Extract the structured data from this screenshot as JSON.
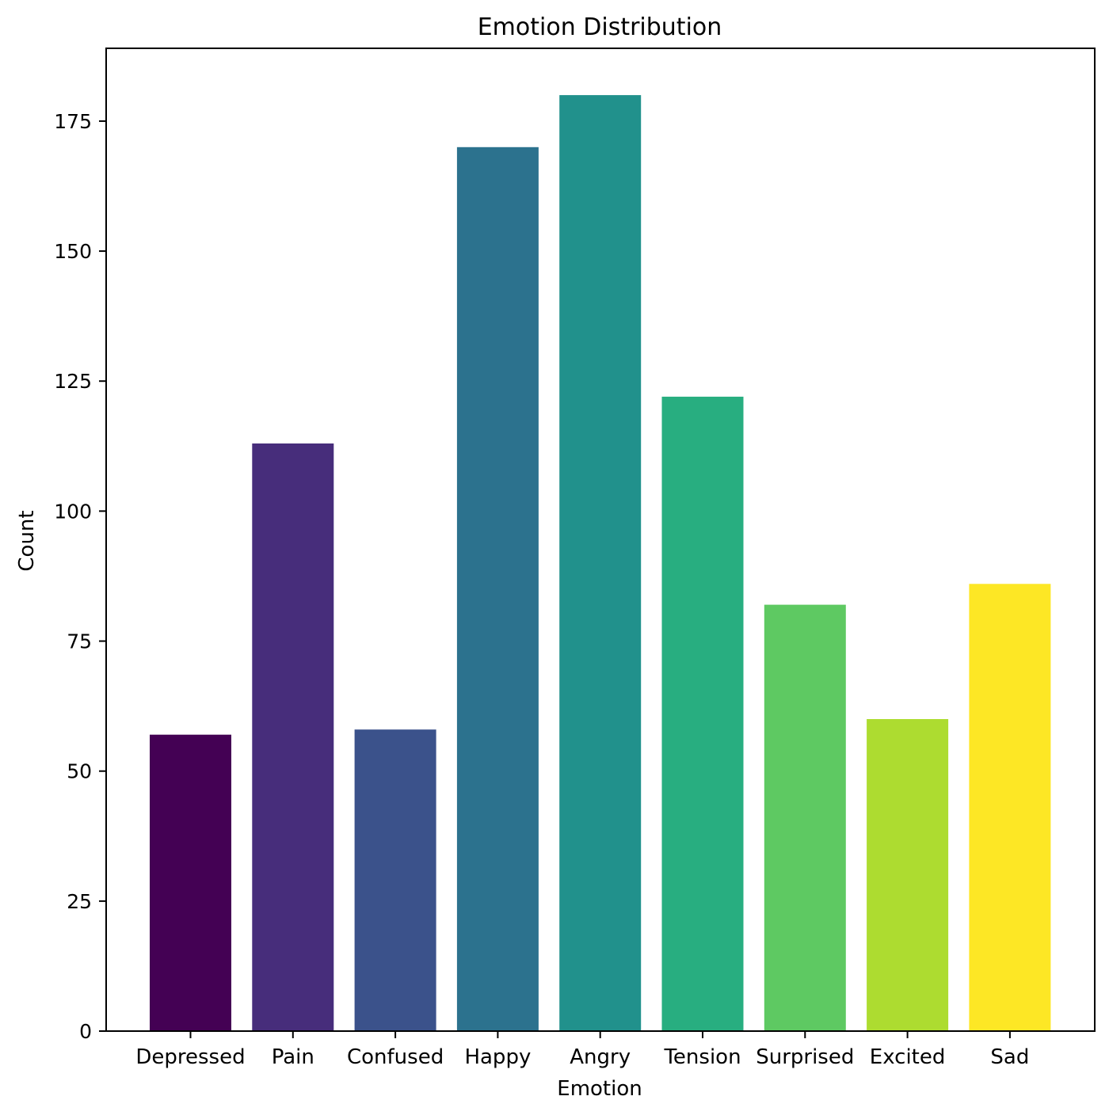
{
  "chart_data": {
    "type": "bar",
    "title": "Emotion Distribution",
    "xlabel": "Emotion",
    "ylabel": "Count",
    "categories": [
      "Depressed",
      "Pain",
      "Confused",
      "Happy",
      "Angry",
      "Tension",
      "Surprised",
      "Excited",
      "Sad"
    ],
    "values": [
      57,
      113,
      58,
      170,
      180,
      122,
      82,
      60,
      86
    ],
    "colors": [
      "#440154",
      "#472d7b",
      "#3b528b",
      "#2c728e",
      "#21918c",
      "#28ae80",
      "#5ec962",
      "#addc30",
      "#fde725"
    ],
    "ylim": [
      0,
      189
    ],
    "yticks": [
      0,
      25,
      50,
      75,
      100,
      125,
      150,
      175
    ],
    "grid": false,
    "legend": "none"
  }
}
